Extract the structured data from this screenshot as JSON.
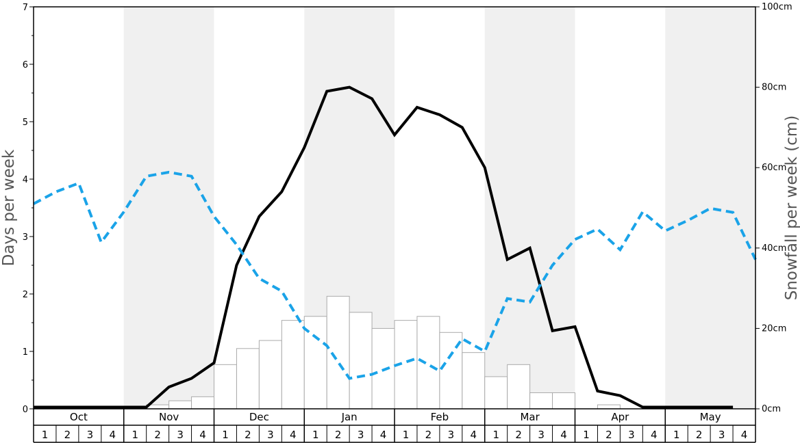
{
  "chart_data": {
    "type": "bar+line",
    "ylabel_left": "Days per week",
    "ylabel_right": "Snowfall per week (cm)",
    "ylim_left": [
      0,
      7
    ],
    "ylim_right": [
      0,
      100
    ],
    "yticks_left": [
      0,
      1,
      2,
      3,
      4,
      5,
      6,
      7
    ],
    "yticks_right": [
      "0cm",
      "20cm",
      "40cm",
      "60cm",
      "80cm",
      "100cm"
    ],
    "months": [
      "Oct",
      "Nov",
      "Dec",
      "Jan",
      "Feb",
      "Mar",
      "Apr",
      "May"
    ],
    "weeks": [
      "1",
      "2",
      "3",
      "4"
    ],
    "shaded_months": [
      "Nov",
      "Jan",
      "Mar",
      "May"
    ],
    "colors": {
      "shade": "#f0f0f0",
      "days_line": "#000000",
      "dashed_line": "#1aa3e8",
      "bar_fill": "#ffffff",
      "bar_stroke": "#aaaaaa"
    },
    "series": [
      {
        "type": "bar",
        "axis": "right",
        "values": [
          0,
          0,
          0,
          0,
          0,
          1,
          2,
          3,
          11,
          15,
          17,
          22,
          23,
          28,
          24,
          20,
          22,
          23,
          19,
          14,
          8,
          11,
          4,
          4,
          0,
          1,
          0,
          0,
          0,
          0,
          0,
          0
        ]
      },
      {
        "type": "line",
        "axis": "left",
        "style": "solid",
        "values": [
          0.03,
          0.03,
          0.03,
          0.03,
          0.03,
          0.03,
          0.38,
          0.53,
          0.8,
          2.5,
          3.35,
          3.78,
          4.55,
          5.53,
          5.6,
          5.4,
          4.77,
          5.25,
          5.12,
          4.9,
          4.2,
          2.6,
          2.8,
          1.36,
          1.43,
          0.31,
          0.23,
          0.03,
          0.03,
          0.03,
          0.03,
          0.03
        ]
      },
      {
        "type": "line",
        "axis": "left",
        "style": "dashed",
        "values": [
          3.57,
          3.78,
          3.93,
          2.9,
          3.43,
          4.05,
          4.12,
          4.05,
          3.35,
          2.86,
          2.27,
          2.05,
          1.4,
          1.1,
          0.53,
          0.6,
          0.75,
          0.88,
          0.66,
          1.22,
          1.0,
          1.92,
          1.86,
          2.5,
          2.95,
          3.13,
          2.77,
          3.43,
          3.1,
          3.28,
          3.49,
          3.42,
          2.6
        ]
      }
    ]
  }
}
